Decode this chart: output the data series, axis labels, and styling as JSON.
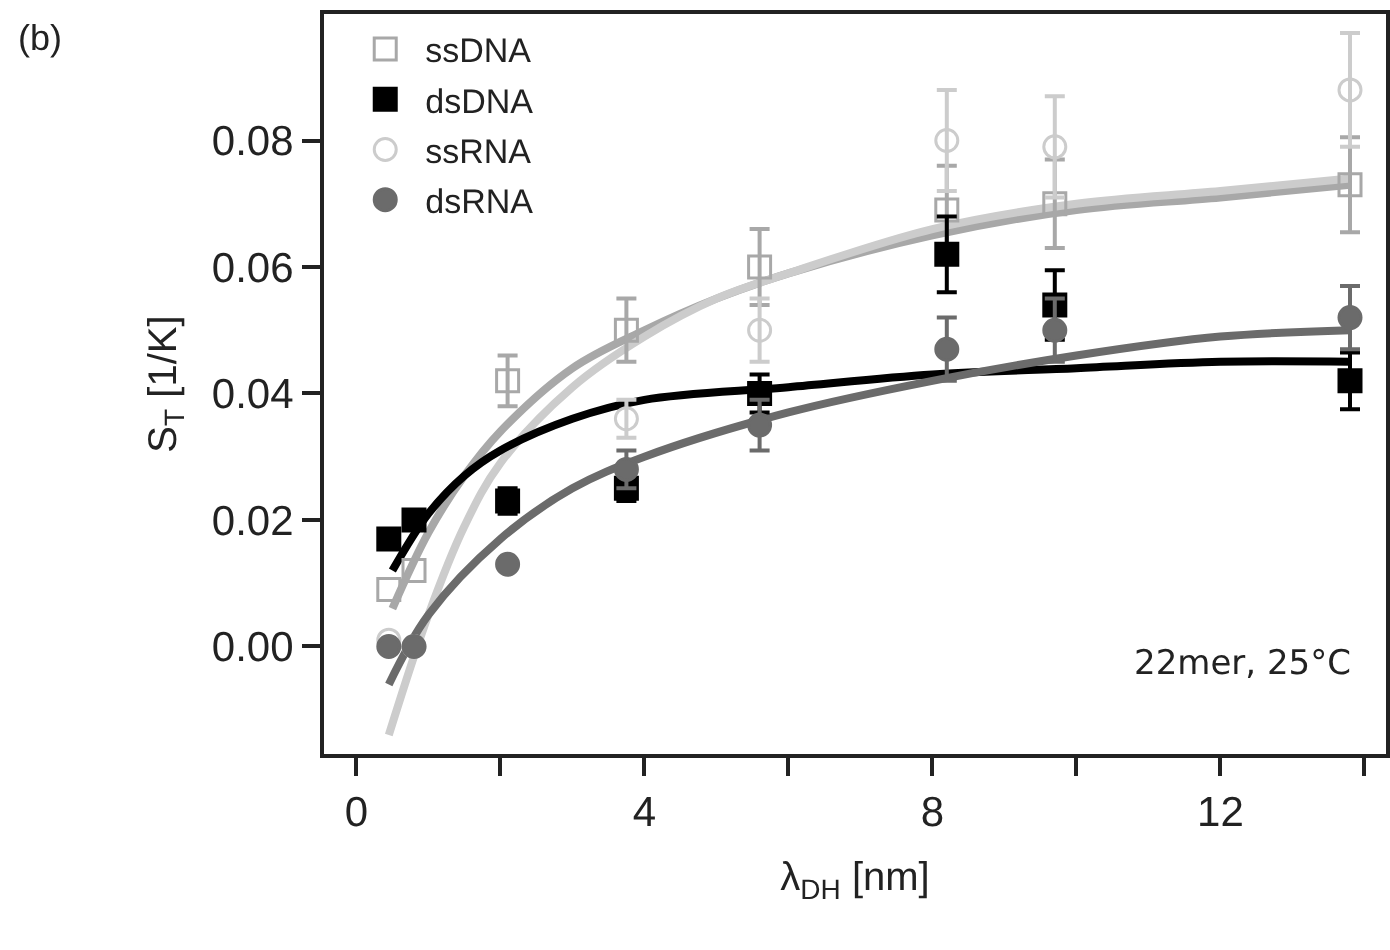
{
  "chart_data": {
    "type": "scatter",
    "xlabel": "λ$_{DH}$ [nm]",
    "ylabel": "S$_{T}$ [1/K]",
    "annotations": [
      "(b)",
      "22mer, 25°C"
    ],
    "xlim": [
      -0.45,
      14.3
    ],
    "xticks": [
      0,
      {
        "value": 2,
        "label": null
      },
      4,
      {
        "value": 6,
        "label": null
      },
      8,
      {
        "value": 10,
        "label": null
      },
      12,
      {
        "value": 14,
        "label": null
      }
    ],
    "ylim": [
      -0.017,
      0.1
    ],
    "yticks": [
      {
        "value": 0,
        "label": "0.00"
      },
      {
        "value": 0.02,
        "label": "0.02"
      },
      {
        "value": 0.04,
        "label": "0.04"
      },
      {
        "value": 0.06,
        "label": "0.06"
      },
      {
        "value": 0.08,
        "label": "0.08"
      }
    ],
    "grid": false,
    "legend": "top left",
    "x": [
      0.45,
      0.8,
      2.1,
      3.75,
      5.6,
      8.2,
      9.7,
      13.8
    ],
    "series": [
      {
        "name": "ssDNA",
        "color": "#a8a8a8",
        "marker": "square",
        "values": [
          0.009,
          0.012,
          0.042,
          0.05,
          0.06,
          0.069,
          0.07,
          0.073
        ],
        "errors": [
          null,
          null,
          0.004,
          0.005,
          0.006,
          0.007,
          0.007,
          0.0075
        ]
      },
      {
        "name": "dsDNA",
        "color": "#000000",
        "marker": "square",
        "values": [
          0.017,
          0.02,
          0.023,
          0.025,
          0.04,
          0.062,
          0.054,
          0.042
        ],
        "errors": [
          null,
          null,
          0.002,
          0.002,
          0.003,
          0.006,
          0.0055,
          0.0045
        ]
      },
      {
        "name": "ssRNA",
        "color": "#cccccc",
        "marker": "circle",
        "values": [
          0.001,
          0.0,
          null,
          0.036,
          0.05,
          0.08,
          0.079,
          0.088
        ],
        "errors": [
          null,
          null,
          null,
          0.003,
          0.005,
          0.008,
          0.008,
          0.009
        ]
      },
      {
        "name": "dsRNA",
        "color": "#6b6b6b",
        "marker": "circle",
        "values": [
          0.0,
          0.0,
          0.013,
          0.028,
          0.035,
          0.047,
          0.05,
          0.052
        ],
        "errors": [
          null,
          null,
          null,
          0.003,
          0.004,
          0.005,
          0.005,
          0.005
        ]
      },
      {
        "type": "line",
        "color": "#a8a8a8",
        "x": [
          0.5,
          1,
          1.5,
          2,
          3,
          4,
          5,
          6,
          8,
          10,
          12,
          13.8
        ],
        "values": [
          0.006,
          0.018,
          0.027,
          0.034,
          0.044,
          0.05,
          0.055,
          0.059,
          0.065,
          0.069,
          0.071,
          0.073
        ]
      },
      {
        "type": "line",
        "color": "#cccccc",
        "x": [
          0.45,
          1,
          1.5,
          2,
          3,
          4,
          5,
          6,
          8,
          10,
          12,
          13.8
        ],
        "values": [
          -0.014,
          0.005,
          0.019,
          0.029,
          0.041,
          0.049,
          0.055,
          0.059,
          0.066,
          0.07,
          0.072,
          0.074
        ]
      },
      {
        "type": "line",
        "color": "#000000",
        "x": [
          0.5,
          1,
          1.5,
          2,
          3,
          4,
          6,
          8,
          10,
          12,
          13.8
        ],
        "values": [
          0.012,
          0.021,
          0.027,
          0.031,
          0.036,
          0.039,
          0.041,
          0.043,
          0.044,
          0.045,
          0.045
        ]
      },
      {
        "type": "line",
        "color": "#6b6b6b",
        "x": [
          0.45,
          1,
          2,
          3,
          4,
          6,
          8,
          10,
          12,
          13.8
        ],
        "values": [
          -0.006,
          0.005,
          0.017,
          0.025,
          0.03,
          0.037,
          0.042,
          0.046,
          0.049,
          0.05
        ]
      }
    ]
  }
}
